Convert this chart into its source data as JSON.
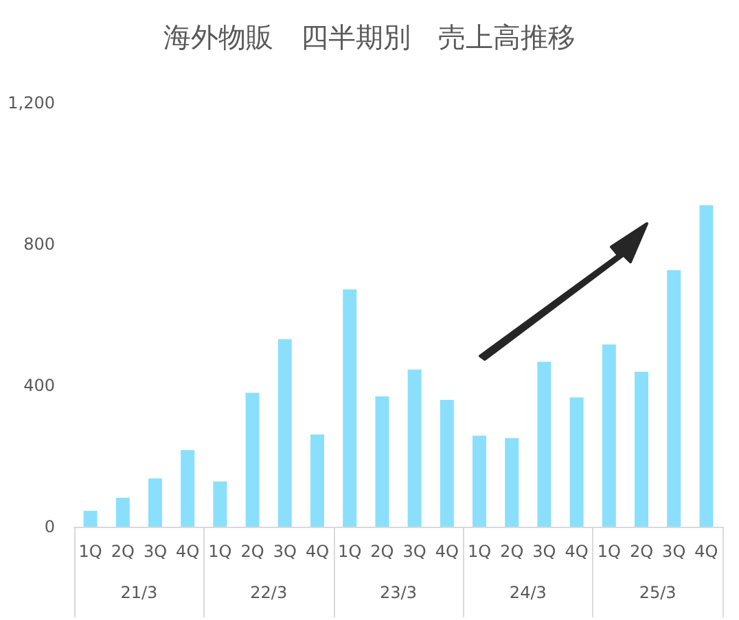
{
  "chart_data": {
    "type": "bar",
    "title": "海外物販　四半期別　売上高推移",
    "categories": [
      "1Q",
      "2Q",
      "3Q",
      "4Q",
      "1Q",
      "2Q",
      "3Q",
      "4Q",
      "1Q",
      "2Q",
      "3Q",
      "4Q",
      "1Q",
      "2Q",
      "3Q",
      "4Q",
      "1Q",
      "2Q",
      "3Q",
      "4Q"
    ],
    "annotations": [
      "21/3",
      "22/3",
      "23/3",
      "24/3",
      "25/3"
    ],
    "values": [
      45,
      82,
      137,
      217,
      128,
      379,
      531,
      261,
      672,
      369,
      445,
      359,
      258,
      251,
      467,
      366,
      516,
      439,
      726,
      910
    ],
    "color": "#8ae0fc",
    "ylim": [
      0,
      1200
    ],
    "yticks": [
      0,
      400,
      800,
      {
        "value": 1200,
        "label": "1,200"
      }
    ],
    "grid": false
  }
}
